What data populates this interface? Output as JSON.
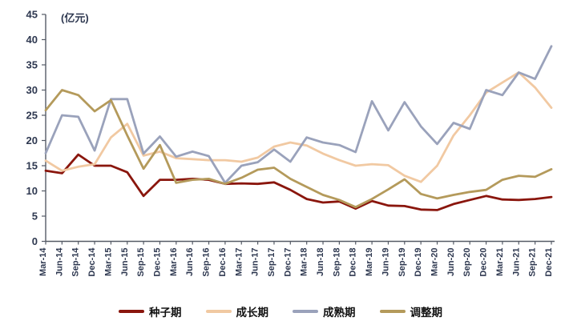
{
  "chart_data": {
    "type": "line",
    "title": "",
    "unit_label": "(亿元)",
    "xlabel": "",
    "ylabel": "",
    "ylim": [
      0,
      45
    ],
    "ytick_step": 5,
    "grid": false,
    "legend_position": "bottom",
    "categories": [
      "Mar-14",
      "Jun-14",
      "Sep-14",
      "Dec-14",
      "Mar-15",
      "Jun-15",
      "Sep-15",
      "Dec-15",
      "Mar-16",
      "Jun-16",
      "Sep-16",
      "Dec-16",
      "Mar-17",
      "Jun-17",
      "Sep-17",
      "Dec-17",
      "Mar-18",
      "Jun-18",
      "Sep-18",
      "Dec-18",
      "Mar-19",
      "Jun-19",
      "Sep-19",
      "Dec-19",
      "Mar-20",
      "Jun-20",
      "Sep-20",
      "Dec-20",
      "Mar-21",
      "Jun-21",
      "Sep-21",
      "Dec-21"
    ],
    "series": [
      {
        "name": "种子期",
        "color": "#8a160d",
        "values": [
          14,
          13.5,
          17.2,
          15,
          15,
          13.7,
          9,
          12.2,
          12.2,
          12.4,
          12.2,
          11.4,
          11.5,
          11.4,
          11.7,
          10.2,
          8.4,
          7.7,
          7.9,
          6.5,
          8,
          7.1,
          7,
          6.3,
          6.2,
          7.4,
          8.2,
          9,
          8.3,
          8.2,
          8.4,
          8.8
        ]
      },
      {
        "name": "成长期",
        "color": "#f1c9a2",
        "values": [
          16,
          14,
          14.8,
          15.3,
          20.6,
          23.3,
          17,
          17.8,
          16.5,
          16.3,
          16.1,
          16.1,
          15.8,
          16.6,
          18.8,
          19.6,
          19,
          17.4,
          16.1,
          15,
          15.3,
          15.1,
          13,
          11.8,
          15,
          21,
          25,
          29.5,
          31.5,
          33.5,
          30.5,
          26.5
        ]
      },
      {
        "name": "成熟期",
        "color": "#9aa2bb",
        "values": [
          17.5,
          25,
          24.7,
          18,
          28.2,
          28.2,
          17.4,
          20.8,
          16.8,
          17.8,
          16.9,
          11.6,
          15,
          15.7,
          18.2,
          15.8,
          20.6,
          19.6,
          19.1,
          17.7,
          27.8,
          22,
          27.6,
          22.8,
          19.3,
          23.5,
          22.3,
          30,
          29,
          33.5,
          32.2,
          38.7
        ]
      },
      {
        "name": "调整期",
        "color": "#b49a5b",
        "values": [
          26,
          30,
          29,
          25.8,
          28,
          21,
          14.4,
          19.1,
          11.6,
          12.2,
          12.4,
          11.4,
          12.6,
          14.2,
          14.6,
          12.4,
          10.8,
          9.2,
          8.2,
          6.8,
          8.4,
          10.3,
          12.3,
          9.4,
          8.5,
          9.2,
          9.8,
          10.2,
          12.2,
          13,
          12.8,
          14.3
        ]
      }
    ]
  }
}
